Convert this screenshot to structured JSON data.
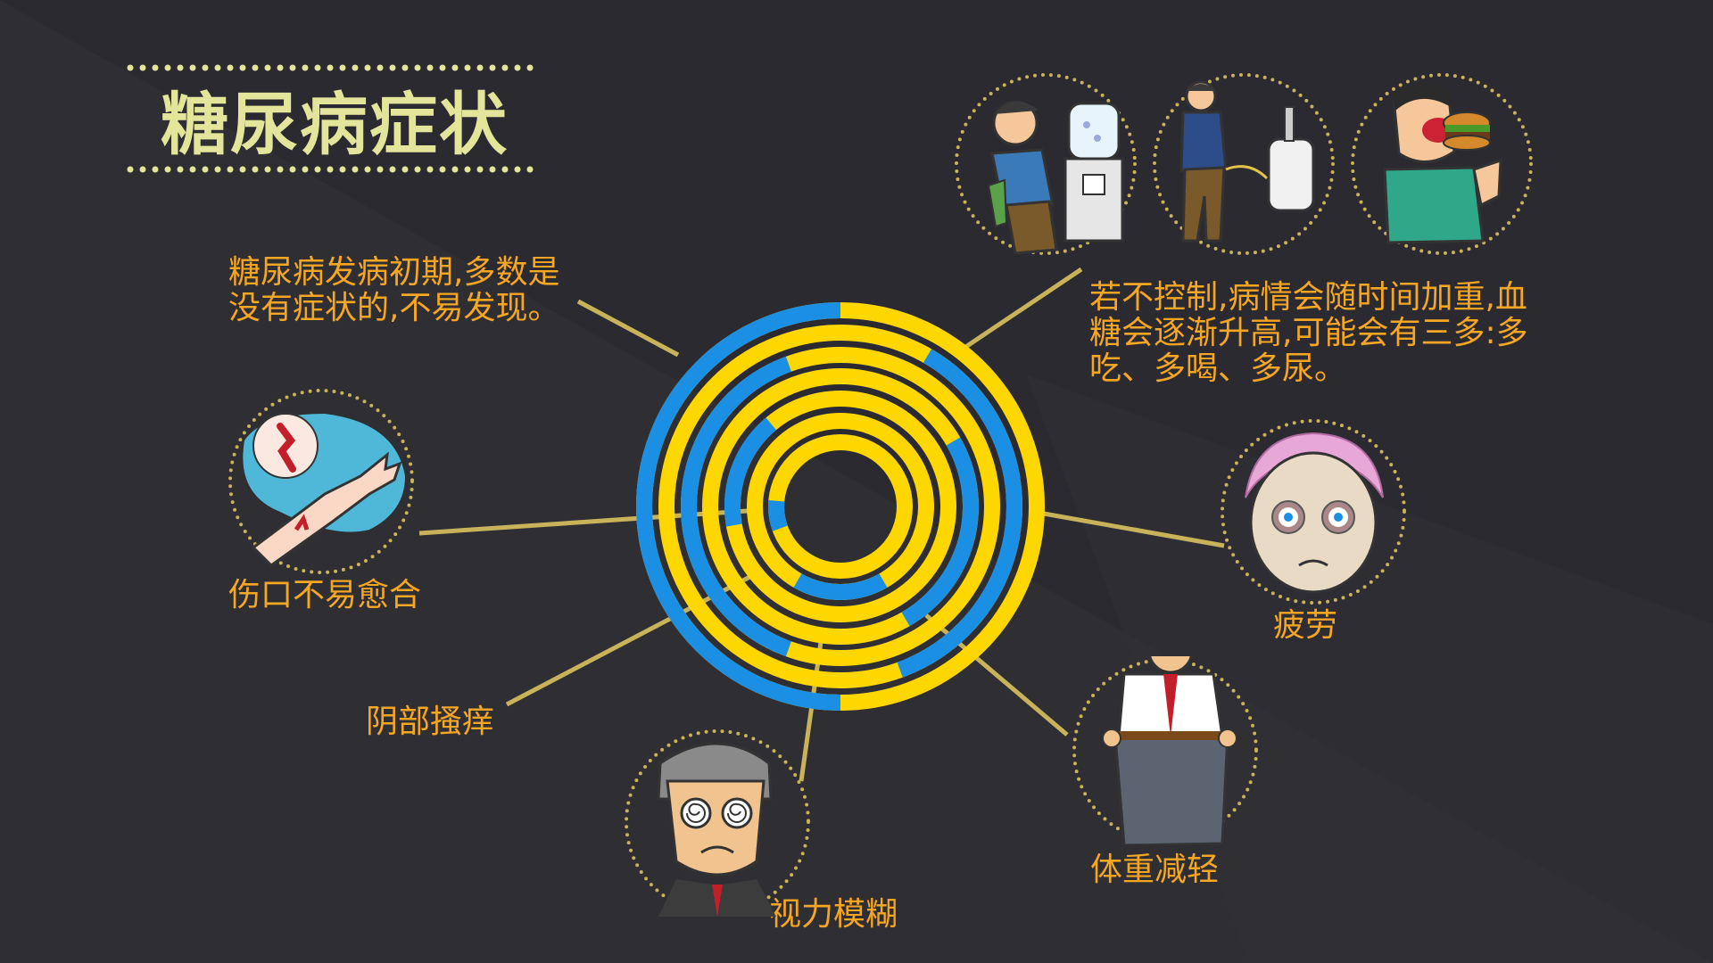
{
  "title": "糖尿病症状",
  "labels": {
    "early": "糖尿病发病初期,多数是\n没有症状的,不易发现。",
    "uncontrolled": "若不控制,病情会随时间加重,血\n糖会逐渐升高,可能会有三多:多\n吃、多喝、多尿。",
    "wound": "伤口不易愈合",
    "itch": "阴部搔痒",
    "vision": "视力模糊",
    "fatigue": "疲劳",
    "weight": "体重减轻"
  },
  "colors": {
    "background": "#2b2a30",
    "title": "#e2e59a",
    "label": "#f5a623",
    "ring_yellow": "#ffd700",
    "ring_blue": "#1a8fe3",
    "connector": "#c9b35a",
    "dotted_border": "#c9b35a"
  },
  "icons": {
    "drinking": "man-drinking-water-icon",
    "urinating": "man-at-urinal-icon",
    "eating": "man-eating-burger-icon",
    "wound": "wounded-arm-icon",
    "vision": "dizzy-man-icon",
    "fatigue": "tired-face-icon",
    "weight": "loose-pants-man-icon"
  }
}
